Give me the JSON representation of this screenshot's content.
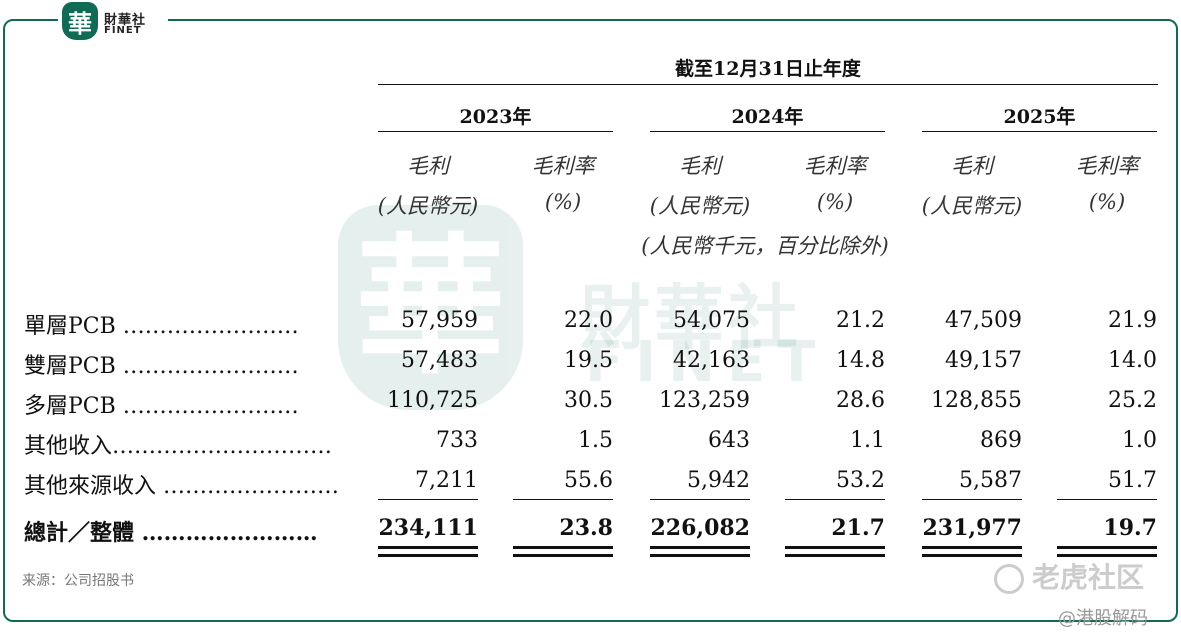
{
  "logo": {
    "badge": "華",
    "name_cn": "財華社",
    "name_en": "FINET"
  },
  "watermark": {
    "badge": "華",
    "name_cn": "財華社",
    "name_en": "FINET"
  },
  "table": {
    "period_header": "截至12月31日止年度",
    "years": [
      "2023年",
      "2024年",
      "2025年"
    ],
    "col_labels": {
      "gross_profit": "毛利",
      "margin": "毛利率",
      "rmb": "(人民幣元)",
      "pct": "(%)"
    },
    "unit_note": "(人民幣千元，百分比除外)",
    "rows": [
      {
        "label": "單層PCB ……………………",
        "values": [
          "57,959",
          "22.0",
          "54,075",
          "21.2",
          "47,509",
          "21.9"
        ]
      },
      {
        "label": "雙層PCB ……………………",
        "values": [
          "57,483",
          "19.5",
          "42,163",
          "14.8",
          "49,157",
          "14.0"
        ]
      },
      {
        "label": "多層PCB ……………………",
        "values": [
          "110,725",
          "30.5",
          "123,259",
          "28.6",
          "128,855",
          "25.2"
        ]
      },
      {
        "label": "其他收入…………………………",
        "values": [
          "733",
          "1.5",
          "643",
          "1.1",
          "869",
          "1.0"
        ]
      },
      {
        "label": "其他來源收入 ……………………",
        "values": [
          "7,211",
          "55.6",
          "5,942",
          "53.2",
          "5,587",
          "51.7"
        ]
      }
    ],
    "total": {
      "label": "總計／整體 ……………………",
      "values": [
        "234,111",
        "23.8",
        "226,082",
        "21.7",
        "231,977",
        "19.7"
      ]
    }
  },
  "footer": {
    "source": "来源：公司招股书",
    "watermark_1": "老虎社区",
    "watermark_2": "@港股解码"
  }
}
